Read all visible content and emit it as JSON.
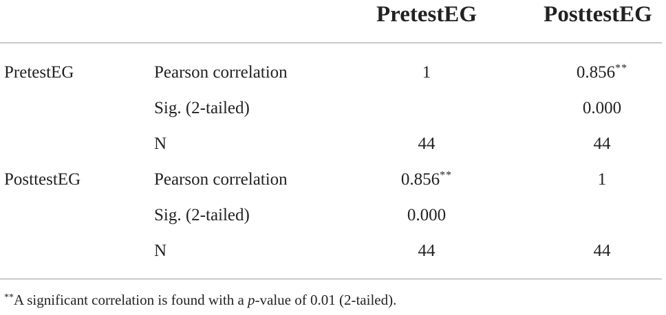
{
  "table": {
    "headers": [
      "PretestEG",
      "PosttestEG"
    ],
    "rows": [
      {
        "group": "PretestEG",
        "stat": "Pearson correlation",
        "v1": "1",
        "v1_mark": "",
        "v2": "0.856",
        "v2_mark": "**"
      },
      {
        "group": "",
        "stat": "Sig. (2-tailed)",
        "v1": "",
        "v1_mark": "",
        "v2": "0.000",
        "v2_mark": ""
      },
      {
        "group": "",
        "stat": "N",
        "v1": "44",
        "v1_mark": "",
        "v2": "44",
        "v2_mark": ""
      },
      {
        "group": "PosttestEG",
        "stat": "Pearson correlation",
        "v1": "0.856",
        "v1_mark": "**",
        "v2": "1",
        "v2_mark": ""
      },
      {
        "group": "",
        "stat": "Sig. (2-tailed)",
        "v1": "0.000",
        "v1_mark": "",
        "v2": "",
        "v2_mark": ""
      },
      {
        "group": "",
        "stat": "N",
        "v1": "44",
        "v1_mark": "",
        "v2": "44",
        "v2_mark": ""
      }
    ]
  },
  "footnote": {
    "mark": "**",
    "text_before": "A significant correlation is found with a ",
    "p_symbol": "p",
    "text_after": "-value of 0.01 (2-tailed)."
  }
}
